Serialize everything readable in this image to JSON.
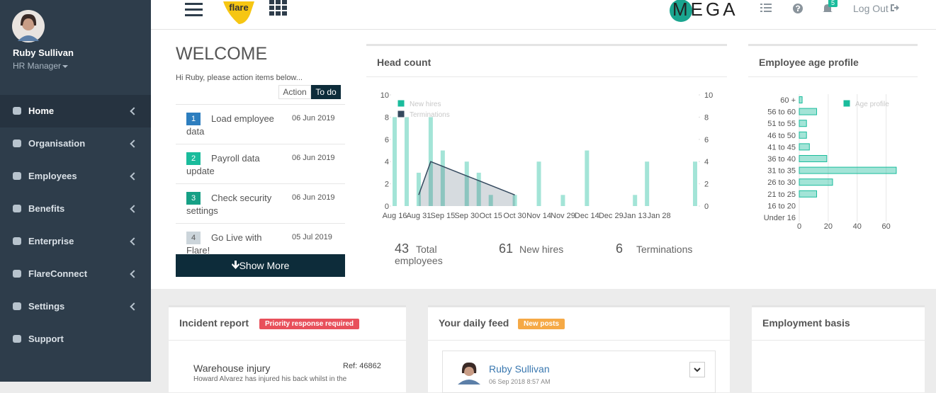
{
  "sidebar": {
    "user_name": "Ruby Sullivan",
    "user_role": "HR Manager",
    "menu": [
      "Home",
      "Organisation",
      "Employees",
      "Benefits",
      "Enterprise",
      "FlareConnect",
      "Settings",
      "Support"
    ]
  },
  "header": {
    "logo": "flare",
    "brand": "MEGA",
    "notification_count": "5",
    "logout": "Log Out"
  },
  "welcome": {
    "title": "WELCOME",
    "greeting": "Hi Ruby, please action items below...",
    "tabs": [
      "Action",
      "To do"
    ],
    "tasks": [
      {
        "number": "1",
        "label": "Load employee data",
        "date": "06 Jun 2019"
      },
      {
        "number": "2",
        "label": "Payroll data update",
        "date": "06 Jun 2019"
      },
      {
        "number": "3",
        "label": "Check security settings",
        "date": "06 Jun 2019"
      },
      {
        "number": "4",
        "label": "Go Live with Flare!",
        "date": "05 Jul 2019"
      }
    ],
    "show_more": "Show More"
  },
  "chart_data": [
    {
      "type": "bar",
      "title": "Head count",
      "categories": [
        "Aug 16",
        null,
        "Aug 31",
        null,
        "Sep 15",
        null,
        "Sep 30",
        null,
        "Oct 15",
        null,
        "Oct 30",
        null,
        "Nov 14",
        null,
        "Nov 29",
        null,
        "Dec 14",
        null,
        "Dec 29",
        null,
        "Jan 13",
        null,
        "Jan 28",
        null,
        null,
        null
      ],
      "series": [
        {
          "name": "New hires",
          "color": "#1abc9c",
          "values": [
            8,
            8,
            3,
            8,
            5,
            0,
            4,
            3,
            1,
            0,
            1,
            0,
            4,
            0,
            1,
            0,
            5,
            0,
            0,
            0,
            1,
            4,
            0,
            0,
            0,
            4
          ]
        },
        {
          "name": "Terminations",
          "type": "area",
          "color": "#34495e",
          "values": [
            null,
            null,
            1,
            4,
            3.57,
            3.14,
            2.71,
            2.29,
            1.86,
            1.43,
            1,
            null,
            null,
            null,
            null,
            null,
            null,
            null,
            null,
            null,
            null,
            null,
            null,
            null,
            null,
            null
          ]
        }
      ],
      "ylim": [
        0,
        10
      ],
      "yticks": [
        0,
        2,
        4,
        6,
        8,
        10
      ],
      "y2lim": [
        0,
        10
      ],
      "y2ticks": [
        0,
        2,
        4,
        6,
        8,
        10
      ],
      "grid": false
    },
    {
      "type": "hbar",
      "title": "Employee age profile",
      "categories": [
        "60 +",
        "56 to 60",
        "51 to 55",
        "46 to 50",
        "41 to 45",
        "36 to 40",
        "31 to 35",
        "26 to 30",
        "21 to 25",
        "16 to 20",
        "Under 16"
      ],
      "series": [
        {
          "name": "Age profile",
          "color": "#1abc9c",
          "values": [
            2,
            12,
            5,
            5,
            7,
            19,
            67,
            23,
            12,
            0,
            0
          ]
        }
      ],
      "xlim": [
        0,
        68
      ],
      "xticks": [
        0,
        20,
        40,
        60
      ],
      "grid": true
    }
  ],
  "summary": [
    {
      "value": "43",
      "label": "Total employees"
    },
    {
      "value": "61",
      "label": "New hires"
    },
    {
      "value": "6",
      "label": "Terminations"
    }
  ],
  "incident": {
    "title": "Incident report",
    "badge": "Priority response required",
    "item_title": "Warehouse injury",
    "ref": "Ref: 46862",
    "description": "Howard Alvarez has injured his back whilst in the"
  },
  "feed": {
    "title": "Your daily feed",
    "badge": "New posts",
    "author": "Ruby Sullivan",
    "date": "06 Sep 2018 8:57 AM"
  },
  "employment": {
    "title": "Employment basis"
  }
}
